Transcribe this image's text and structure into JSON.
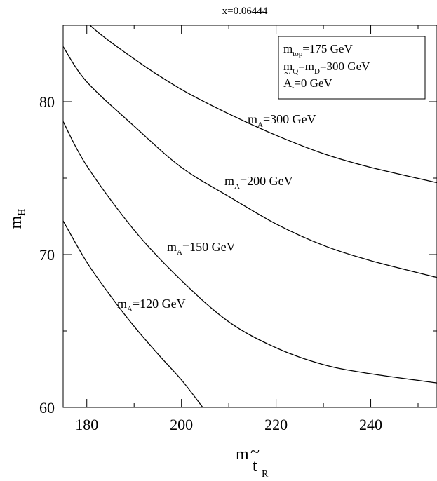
{
  "chart_data": {
    "type": "line",
    "title": "x=0.06444",
    "xlabel": {
      "main": "m",
      "accent": "~",
      "sub": "t",
      "subsub": "R"
    },
    "ylabel": {
      "main": "m",
      "sub": "H"
    },
    "xlim": [
      175,
      254
    ],
    "ylim": [
      60,
      85
    ],
    "xticks": [
      180,
      200,
      220,
      240
    ],
    "yticks": [
      60,
      70,
      80
    ],
    "grid": false,
    "legend": {
      "placement": "top-right",
      "lines": [
        {
          "pre": "m",
          "sub": "top",
          "post": "=175 GeV"
        },
        {
          "pre": "m",
          "sub": "Q",
          "mid": "=m",
          "sub2": "D",
          "post": "=300 GeV"
        },
        {
          "pre": "A",
          "accent": "~",
          "sub": "t",
          "post": "=0 GeV"
        }
      ]
    },
    "series": [
      {
        "name": "m_A=300 GeV",
        "label": {
          "pre": "m",
          "sub": "A",
          "post": "=300 GeV"
        },
        "x": [
          175,
          180,
          190,
          200,
          210,
          220,
          230,
          240,
          254
        ],
        "y": [
          87.5,
          85.2,
          82.8,
          80.8,
          79.2,
          77.8,
          76.6,
          75.7,
          74.7
        ]
      },
      {
        "name": "m_A=200 GeV",
        "label": {
          "pre": "m",
          "sub": "A",
          "post": "=200 GeV"
        },
        "x": [
          175,
          180,
          190,
          200,
          210,
          220,
          230,
          240,
          254
        ],
        "y": [
          83.6,
          81.3,
          78.4,
          75.7,
          73.8,
          72.0,
          70.6,
          69.6,
          68.5
        ]
      },
      {
        "name": "m_A=150 GeV",
        "label": {
          "pre": "m",
          "sub": "A",
          "post": "=150 GeV"
        },
        "x": [
          175,
          180,
          190,
          200,
          210,
          220,
          230,
          240,
          254
        ],
        "y": [
          78.7,
          75.8,
          71.6,
          68.3,
          65.6,
          63.9,
          62.8,
          62.2,
          61.6
        ]
      },
      {
        "name": "m_A=120 GeV",
        "label": {
          "pre": "m",
          "sub": "A",
          "post": "=120 GeV"
        },
        "x": [
          175,
          180,
          185,
          190,
          195,
          200,
          204.5
        ],
        "y": [
          72.2,
          69.5,
          67.3,
          65.3,
          63.5,
          61.8,
          60.0
        ]
      }
    ]
  }
}
